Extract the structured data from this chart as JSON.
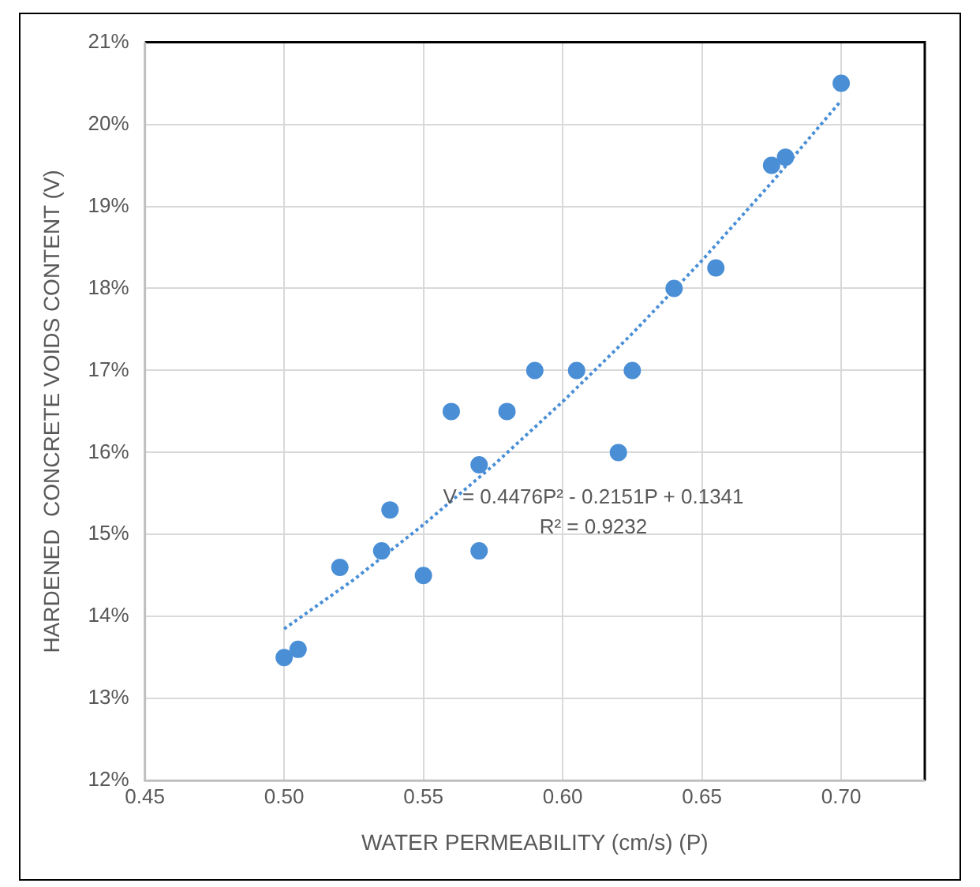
{
  "chart_data": {
    "type": "scatter",
    "xlabel": "WATER PERMEABILITY (cm/s) (P)",
    "ylabel": "HARDENED  CONCRETE VOIDS CONTENT (V)",
    "annotations": [
      "V = 0.4476P² - 0.2151P + 0.1341",
      "R² = 0.9232"
    ],
    "xlim": [
      0.45,
      0.73
    ],
    "xticks": [
      {
        "value": 0.45,
        "label": "0.45"
      },
      {
        "value": 0.5,
        "label": "0.50"
      },
      {
        "value": 0.55,
        "label": "0.55"
      },
      {
        "value": 0.6,
        "label": "0.60"
      },
      {
        "value": 0.65,
        "label": "0.65"
      },
      {
        "value": 0.7,
        "label": "0.70"
      }
    ],
    "ylim": [
      12,
      21
    ],
    "yticks": [
      {
        "value": 12,
        "label": "12%"
      },
      {
        "value": 13,
        "label": "13%"
      },
      {
        "value": 14,
        "label": "14%"
      },
      {
        "value": 15,
        "label": "15%"
      },
      {
        "value": 16,
        "label": "16%"
      },
      {
        "value": 17,
        "label": "17%"
      },
      {
        "value": 18,
        "label": "18%"
      },
      {
        "value": 19,
        "label": "19%"
      },
      {
        "value": 20,
        "label": "20%"
      },
      {
        "value": 21,
        "label": "21%"
      }
    ],
    "grid": true,
    "legend": false,
    "series": [
      {
        "marker": "circle",
        "color": "#4a8fd6",
        "x": [
          0.5,
          0.505,
          0.52,
          0.535,
          0.538,
          0.55,
          0.56,
          0.57,
          0.57,
          0.58,
          0.59,
          0.605,
          0.62,
          0.625,
          0.64,
          0.655,
          0.675,
          0.68,
          0.7
        ],
        "values": [
          13.5,
          13.6,
          14.6,
          14.8,
          15.3,
          14.5,
          16.5,
          15.85,
          14.8,
          16.5,
          17.0,
          17.0,
          16.0,
          17.0,
          18.0,
          18.25,
          19.5,
          19.6,
          20.5
        ]
      },
      {
        "type": "line",
        "marker": "none",
        "line_style": "dotted",
        "color": "#4a8fd6",
        "x": [
          0.5,
          0.525,
          0.55,
          0.575,
          0.6,
          0.625,
          0.65,
          0.675,
          0.7
        ],
        "values": [
          13.85,
          14.45,
          15.12,
          15.84,
          16.62,
          17.45,
          18.34,
          19.29,
          20.29
        ]
      }
    ]
  }
}
